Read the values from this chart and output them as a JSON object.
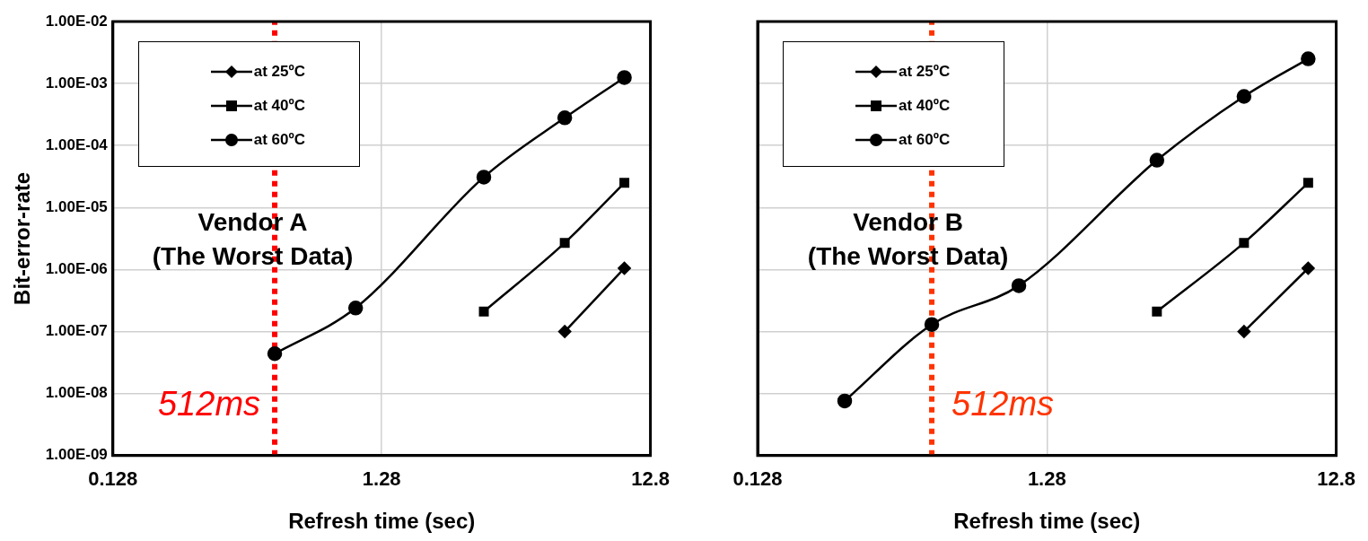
{
  "chart_data": [
    {
      "type": "line",
      "xlabel": "Refresh time (sec)",
      "ylabel": "Bit-error-rate",
      "log": "xy",
      "grid": true,
      "legend": "top left",
      "line_style": "solid",
      "xlim": [
        0.128,
        12.8
      ],
      "xticks": [
        0.128,
        1.28,
        12.8
      ],
      "ylim": [
        1e-09,
        0.01
      ],
      "yticks": [
        {
          "value": 1e-09,
          "label": "1.00E-09"
        },
        {
          "value": 1e-08,
          "label": "1.00E-08"
        },
        {
          "value": 1e-07,
          "label": "1.00E-07"
        },
        {
          "value": 1e-06,
          "label": "1.00E-06"
        },
        {
          "value": 1e-05,
          "label": "1.00E-05"
        },
        {
          "value": 0.0001,
          "label": "1.00E-04"
        },
        {
          "value": 0.001,
          "label": "1.00E-03"
        },
        {
          "value": 0.01,
          "label": "1.00E-02"
        }
      ],
      "series": [
        {
          "name": "at 25ºC",
          "color": "#000000",
          "marker": "diamond",
          "x": [
            6.144,
            10.24
          ],
          "values": [
            1e-07,
            1.05e-06
          ]
        },
        {
          "name": "at 40ºC",
          "color": "#000000",
          "marker": "square",
          "x": [
            3.072,
            6.144,
            10.24
          ],
          "values": [
            2.1e-07,
            2.7e-06,
            2.5e-05
          ]
        },
        {
          "name": "at 60ºC",
          "color": "#000000",
          "marker": "circle",
          "x": [
            0.512,
            1.024,
            3.072,
            6.144,
            10.24
          ],
          "values": [
            4.4e-08,
            2.4e-07,
            3.1e-05,
            0.00028,
            0.00125
          ]
        }
      ],
      "ref_lines": [
        {
          "axis": "x",
          "value": 0.512,
          "label": "512ms",
          "color": "#ff0000",
          "line_style": "dotted"
        }
      ],
      "annotations": [
        "Vendor A\n(The Worst Data)"
      ]
    },
    {
      "type": "line",
      "xlabel": "Refresh time (sec)",
      "log": "xy",
      "grid": true,
      "legend": "top left",
      "line_style": "solid",
      "tick_labels": "x",
      "xlim": [
        0.128,
        12.8
      ],
      "xticks": [
        0.128,
        1.28,
        12.8
      ],
      "ylim": [
        1e-09,
        0.01
      ],
      "yticks": [
        {
          "value": 1e-09,
          "label": null
        },
        {
          "value": 1e-08,
          "label": null
        },
        {
          "value": 1e-07,
          "label": null
        },
        {
          "value": 1e-06,
          "label": null
        },
        {
          "value": 1e-05,
          "label": null
        },
        {
          "value": 0.0001,
          "label": null
        },
        {
          "value": 0.001,
          "label": null
        },
        {
          "value": 0.01,
          "label": null
        }
      ],
      "series": [
        {
          "name": "at 25ºC",
          "color": "#000000",
          "marker": "diamond",
          "x": [
            6.144,
            10.24
          ],
          "values": [
            1e-07,
            1.05e-06
          ]
        },
        {
          "name": "at 40ºC",
          "color": "#000000",
          "marker": "square",
          "x": [
            3.072,
            6.144,
            10.24
          ],
          "values": [
            2.1e-07,
            2.7e-06,
            2.5e-05
          ]
        },
        {
          "name": "at 60ºC",
          "color": "#000000",
          "marker": "circle",
          "x": [
            0.256,
            0.512,
            1.024,
            3.072,
            6.144,
            10.24
          ],
          "values": [
            7.6e-09,
            1.3e-07,
            5.5e-07,
            5.8e-05,
            0.00062,
            0.0025
          ]
        }
      ],
      "ref_lines": [
        {
          "axis": "x",
          "value": 0.512,
          "label": "512ms",
          "color": "#ff3300",
          "line_style": "dotted"
        }
      ],
      "annotations": [
        "Vendor B\n(The Worst Data)"
      ]
    }
  ]
}
